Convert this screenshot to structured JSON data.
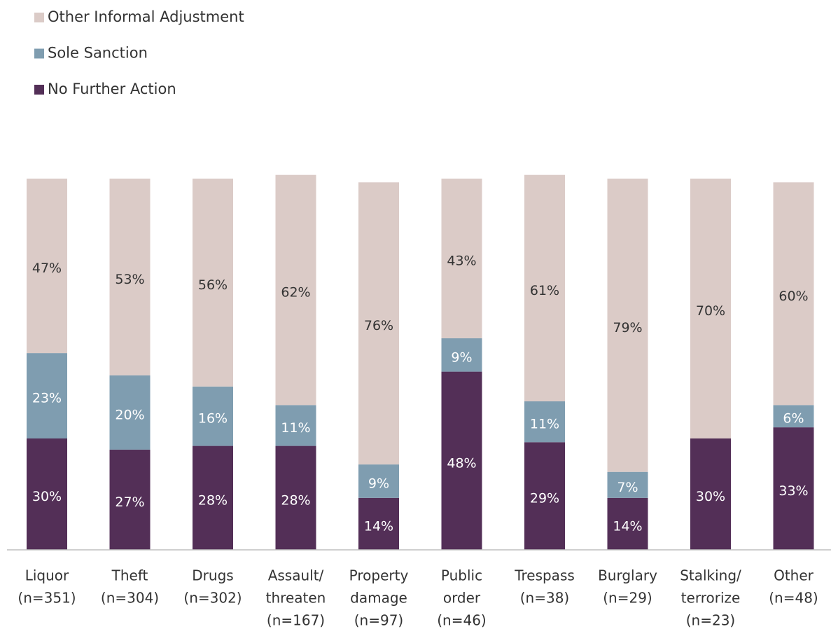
{
  "chart_data": {
    "type": "stacked_bar",
    "categories": [
      [
        "Liquor",
        "(n=351)"
      ],
      [
        "Theft",
        "(n=304)"
      ],
      [
        "Drugs",
        "(n=302)"
      ],
      [
        "Assault/",
        "threaten",
        "(n=167)"
      ],
      [
        "Property",
        "damage",
        "(n=97)"
      ],
      [
        "Public",
        "order",
        "(n=46)"
      ],
      [
        "Trespass",
        "(n=38)"
      ],
      [
        "Burglary",
        "(n=29)"
      ],
      [
        "Stalking/",
        "terrorize",
        "(n=23)"
      ],
      [
        "Other",
        "(n=48)"
      ]
    ],
    "series": [
      {
        "name": "No Further Action",
        "color": "#532f57",
        "label_color": "#ffffff",
        "values": [
          30,
          27,
          28,
          28,
          14,
          48,
          29,
          14,
          30,
          33
        ],
        "value_labels": [
          "30%",
          "27%",
          "28%",
          "28%",
          "14%",
          "48%",
          "29%",
          "14%",
          "30%",
          "33%"
        ]
      },
      {
        "name": "Sole Sanction",
        "color": "#7f9db0",
        "label_color": "#ffffff",
        "values": [
          23,
          20,
          16,
          11,
          9,
          9,
          11,
          7,
          0,
          6
        ],
        "value_labels": [
          "23%",
          "20%",
          "16%",
          "11%",
          "9%",
          "9%",
          "11%",
          "7%",
          null,
          "6%"
        ]
      },
      {
        "name": "Other Informal Adjustment",
        "color": "#dbcbc7",
        "label_color": "#333333",
        "values": [
          47,
          53,
          56,
          62,
          76,
          43,
          61,
          79,
          70,
          60
        ],
        "value_labels": [
          "47%",
          "53%",
          "56%",
          "62%",
          "76%",
          "43%",
          "61%",
          "79%",
          "70%",
          "60%"
        ]
      }
    ],
    "ylim": [
      0,
      100
    ],
    "legend": "top-left"
  }
}
